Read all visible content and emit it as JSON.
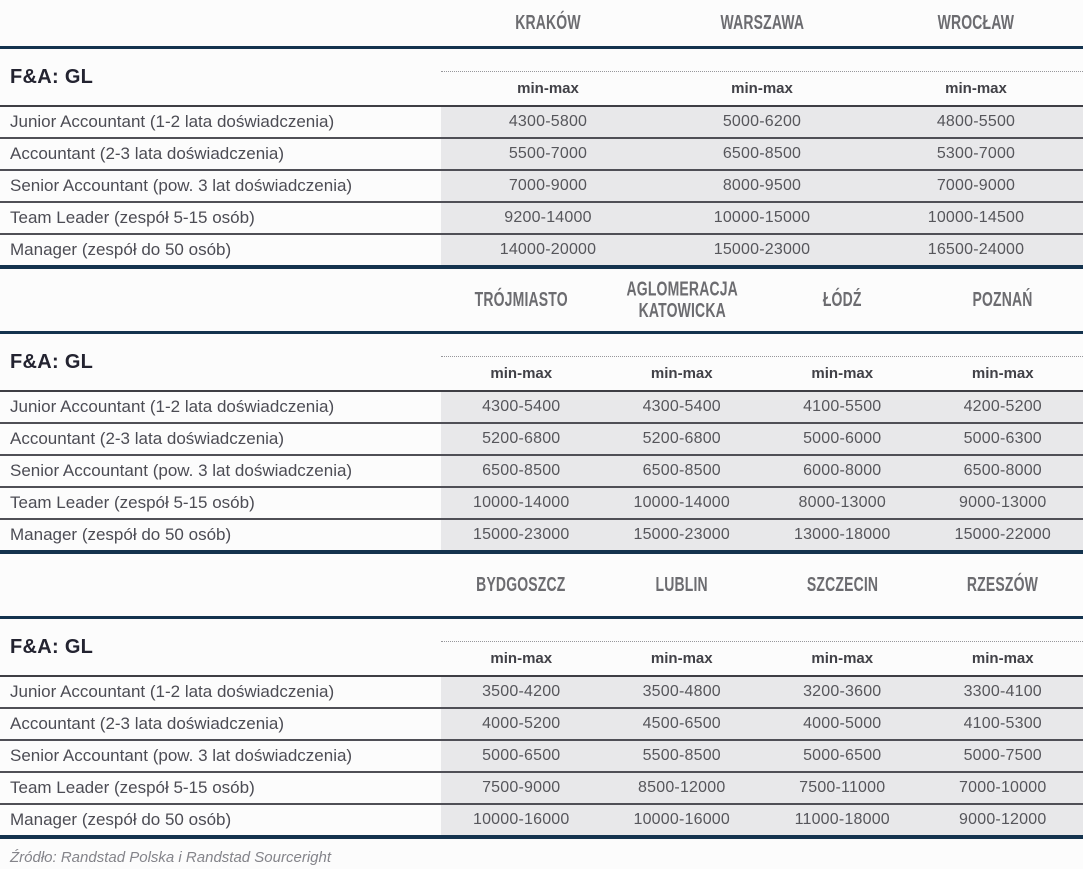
{
  "labels": {
    "section_title": "F&A: GL",
    "minmax": "min-max"
  },
  "colors": {
    "navy_accent": "#14334e",
    "cell_background": "#e8e8ea",
    "separator": "#4f4f56"
  },
  "tables": [
    {
      "cities": [
        "KRAKÓW",
        "WARSZAWA",
        "WROCŁAW"
      ],
      "rows": [
        {
          "label": "Junior Accountant (1-2 lata doświadczenia)",
          "values": [
            "4300-5800",
            "5000-6200",
            "4800-5500"
          ]
        },
        {
          "label": "Accountant (2-3 lata doświadczenia)",
          "values": [
            "5500-7000",
            "6500-8500",
            "5300-7000"
          ]
        },
        {
          "label": "Senior Accountant (pow. 3 lat doświadczenia)",
          "values": [
            "7000-9000",
            "8000-9500",
            "7000-9000"
          ]
        },
        {
          "label": "Team Leader (zespół 5-15 osób)",
          "values": [
            "9200-14000",
            "10000-15000",
            "10000-14500"
          ]
        },
        {
          "label": "Manager (zespół do 50 osób)",
          "values": [
            "14000-20000",
            "15000-23000",
            "16500-24000"
          ]
        }
      ]
    },
    {
      "cities": [
        "TRÓJMIASTO",
        "AGLOMERACJA KATOWICKA",
        "ŁÓDŹ",
        "POZNAŃ"
      ],
      "rows": [
        {
          "label": "Junior Accountant (1-2 lata doświadczenia)",
          "values": [
            "4300-5400",
            "4300-5400",
            "4100-5500",
            "4200-5200"
          ]
        },
        {
          "label": "Accountant (2-3 lata doświadczenia)",
          "values": [
            "5200-6800",
            "5200-6800",
            "5000-6000",
            "5000-6300"
          ]
        },
        {
          "label": "Senior Accountant (pow. 3 lat doświadczenia)",
          "values": [
            "6500-8500",
            "6500-8500",
            "6000-8000",
            "6500-8000"
          ]
        },
        {
          "label": "Team Leader (zespół 5-15 osób)",
          "values": [
            "10000-14000",
            "10000-14000",
            "8000-13000",
            "9000-13000"
          ]
        },
        {
          "label": "Manager (zespół do 50 osób)",
          "values": [
            "15000-23000",
            "15000-23000",
            "13000-18000",
            "15000-22000"
          ]
        }
      ]
    },
    {
      "cities": [
        "BYDGOSZCZ",
        "LUBLIN",
        "SZCZECIN",
        "RZESZÓW"
      ],
      "rows": [
        {
          "label": "Junior Accountant (1-2 lata doświadczenia)",
          "values": [
            "3500-4200",
            "3500-4800",
            "3200-3600",
            "3300-4100"
          ]
        },
        {
          "label": "Accountant (2-3 lata doświadczenia)",
          "values": [
            "4000-5200",
            "4500-6500",
            "4000-5000",
            "4100-5300"
          ]
        },
        {
          "label": "Senior Accountant (pow. 3 lat doświadczenia)",
          "values": [
            "5000-6500",
            "5500-8500",
            "5000-6500",
            "5000-7500"
          ]
        },
        {
          "label": "Team Leader (zespół 5-15 osób)",
          "values": [
            "7500-9000",
            "8500-12000",
            "7500-11000",
            "7000-10000"
          ]
        },
        {
          "label": "Manager (zespół do 50 osób)",
          "values": [
            "10000-16000",
            "10000-16000",
            "11000-18000",
            "9000-12000"
          ]
        }
      ]
    }
  ],
  "footer": {
    "source": "Źródło: Randstad Polska i Randstad Sourceright"
  }
}
